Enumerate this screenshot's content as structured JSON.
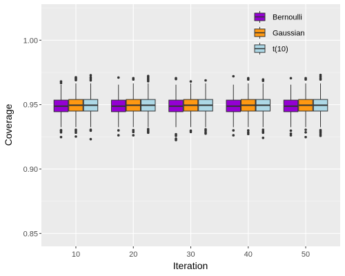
{
  "chart_data": {
    "type": "boxplot",
    "xlabel": "Iteration",
    "ylabel": "Coverage",
    "categories": [
      "10",
      "20",
      "30",
      "40",
      "50"
    ],
    "ylim": [
      0.84,
      1.028
    ],
    "yticks": [
      "0.85",
      "0.90",
      "0.95",
      "1.00"
    ],
    "ytick_values": [
      0.85,
      0.9,
      0.95,
      1.0
    ],
    "grid": true,
    "legend_position": "top-right",
    "series": [
      {
        "name": "Bernoulli",
        "color": "#9400D3",
        "boxes": [
          {
            "q1": 0.9445,
            "median": 0.9488,
            "q3": 0.9535,
            "lower": 0.9325,
            "upper": 0.9655,
            "outliers": [
              0.9668,
              0.968,
              0.9302,
              0.9295,
              0.9285,
              0.9248
            ]
          },
          {
            "q1": 0.9445,
            "median": 0.9488,
            "q3": 0.9535,
            "lower": 0.9325,
            "upper": 0.9655,
            "outliers": [
              0.971,
              0.93,
              0.9262
            ]
          },
          {
            "q1": 0.9445,
            "median": 0.9488,
            "q3": 0.9535,
            "lower": 0.9325,
            "upper": 0.9655,
            "outliers": [
              0.9705,
              0.9698,
              0.927,
              0.9258,
              0.9235,
              0.9225
            ]
          },
          {
            "q1": 0.9445,
            "median": 0.9488,
            "q3": 0.9535,
            "lower": 0.9325,
            "upper": 0.9655,
            "outliers": [
              0.972,
              0.93,
              0.9262
            ]
          },
          {
            "q1": 0.9445,
            "median": 0.9488,
            "q3": 0.9535,
            "lower": 0.9325,
            "upper": 0.9655,
            "outliers": [
              0.9705,
              0.9298,
              0.9275,
              0.9262
            ]
          }
        ]
      },
      {
        "name": "Gaussian",
        "color": "#FF9912",
        "boxes": [
          {
            "q1": 0.945,
            "median": 0.9495,
            "q3": 0.954,
            "lower": 0.9325,
            "upper": 0.9665,
            "outliers": [
              0.9712,
              0.9705,
              0.9698,
              0.969,
              0.9305,
              0.9295,
              0.9282,
              0.9252
            ]
          },
          {
            "q1": 0.945,
            "median": 0.9495,
            "q3": 0.954,
            "lower": 0.9325,
            "upper": 0.9665,
            "outliers": [
              0.9705,
              0.9695,
              0.9302,
              0.9288,
              0.9262
            ]
          },
          {
            "q1": 0.945,
            "median": 0.9495,
            "q3": 0.954,
            "lower": 0.9325,
            "upper": 0.9665,
            "outliers": [
              0.968,
              0.9298,
              0.9288
            ]
          },
          {
            "q1": 0.945,
            "median": 0.9495,
            "q3": 0.954,
            "lower": 0.9325,
            "upper": 0.9665,
            "outliers": [
              0.9705,
              0.9695,
              0.93,
              0.9285,
              0.9272
            ]
          },
          {
            "q1": 0.945,
            "median": 0.9495,
            "q3": 0.954,
            "lower": 0.9325,
            "upper": 0.9665,
            "outliers": [
              0.9705,
              0.9695,
              0.9305,
              0.9285,
              0.9248
            ]
          }
        ]
      },
      {
        "name": "t(10)",
        "color": "#ADD8E6",
        "boxes": [
          {
            "q1": 0.945,
            "median": 0.9495,
            "q3": 0.954,
            "lower": 0.9325,
            "upper": 0.9665,
            "outliers": [
              0.9728,
              0.9712,
              0.97,
              0.9688,
              0.9305,
              0.9298,
              0.9232
            ]
          },
          {
            "q1": 0.945,
            "median": 0.9495,
            "q3": 0.954,
            "lower": 0.9325,
            "upper": 0.9665,
            "outliers": [
              0.9722,
              0.9712,
              0.9702,
              0.9692,
              0.9682,
              0.931,
              0.93,
              0.929,
              0.9282
            ]
          },
          {
            "q1": 0.945,
            "median": 0.9495,
            "q3": 0.954,
            "lower": 0.9325,
            "upper": 0.9665,
            "outliers": [
              0.9688,
              0.9308,
              0.9298,
              0.9285,
              0.9275
            ]
          },
          {
            "q1": 0.945,
            "median": 0.9495,
            "q3": 0.954,
            "lower": 0.9325,
            "upper": 0.9665,
            "outliers": [
              0.9695,
              0.9685,
              0.9305,
              0.9292,
              0.9282,
              0.9242
            ]
          },
          {
            "q1": 0.945,
            "median": 0.9495,
            "q3": 0.954,
            "lower": 0.9325,
            "upper": 0.9665,
            "outliers": [
              0.973,
              0.9718,
              0.9705,
              0.9695,
              0.9302,
              0.9292,
              0.9282,
              0.927,
              0.9258
            ]
          }
        ]
      }
    ]
  }
}
